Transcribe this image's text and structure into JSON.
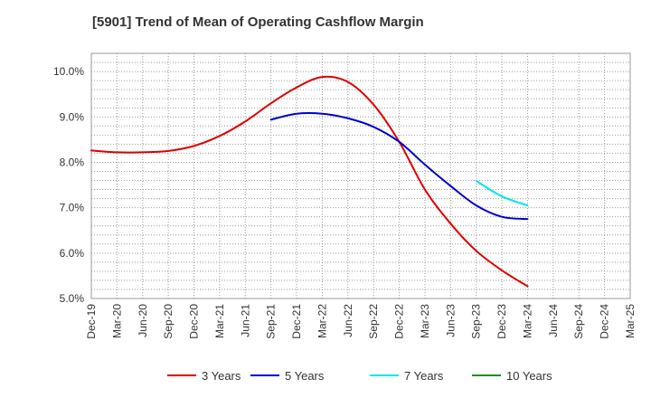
{
  "chart_data": {
    "type": "line",
    "title": "[5901]  Trend of Mean of Operating Cashflow Margin",
    "xlabel": "",
    "ylabel": "",
    "ylim": [
      5.0,
      10.4
    ],
    "yticks": [
      "5.0%",
      "6.0%",
      "7.0%",
      "8.0%",
      "9.0%",
      "10.0%"
    ],
    "ytick_values": [
      5.0,
      6.0,
      7.0,
      8.0,
      9.0,
      10.0
    ],
    "grid": true,
    "categories": [
      "Dec-19",
      "Mar-20",
      "Jun-20",
      "Sep-20",
      "Dec-20",
      "Mar-21",
      "Jun-21",
      "Sep-21",
      "Dec-21",
      "Mar-22",
      "Jun-22",
      "Sep-22",
      "Dec-22",
      "Mar-23",
      "Jun-23",
      "Sep-23",
      "Dec-23",
      "Mar-24",
      "Jun-24",
      "Sep-24",
      "Dec-24",
      "Mar-25"
    ],
    "legend_position": "bottom",
    "series": [
      {
        "name": "3 Years",
        "color": "#dd0000",
        "values": [
          8.26,
          8.22,
          8.22,
          8.25,
          8.36,
          8.58,
          8.9,
          9.3,
          9.65,
          9.88,
          9.77,
          9.27,
          8.45,
          7.4,
          6.65,
          6.05,
          5.62,
          5.27,
          null,
          null,
          null,
          null
        ]
      },
      {
        "name": "5 Years",
        "color": "#0000cc",
        "values": [
          null,
          null,
          null,
          null,
          null,
          null,
          null,
          8.94,
          9.07,
          9.07,
          8.97,
          8.78,
          8.45,
          7.95,
          7.48,
          7.05,
          6.8,
          6.75,
          null,
          null,
          null,
          null
        ]
      },
      {
        "name": "7 Years",
        "color": "#00e5ee",
        "values": [
          null,
          null,
          null,
          null,
          null,
          null,
          null,
          null,
          null,
          null,
          null,
          null,
          null,
          null,
          null,
          7.59,
          7.25,
          7.05,
          null,
          null,
          null,
          null
        ]
      },
      {
        "name": "10 Years",
        "color": "#228b22",
        "values": [
          null,
          null,
          null,
          null,
          null,
          null,
          null,
          null,
          null,
          null,
          null,
          null,
          null,
          null,
          null,
          null,
          null,
          null,
          null,
          null,
          null,
          null
        ]
      }
    ]
  }
}
